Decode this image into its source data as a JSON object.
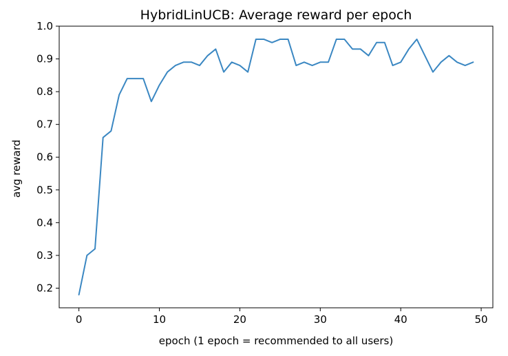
{
  "chart_data": {
    "type": "line",
    "title": "HybridLinUCB: Average reward per epoch",
    "xlabel": "epoch (1 epoch = recommended to all users)",
    "ylabel": "avg reward",
    "xlim": [
      -2.45,
      51.45
    ],
    "ylim": [
      0.14,
      1.0
    ],
    "xticks": [
      0,
      10,
      20,
      30,
      40,
      50
    ],
    "yticks": [
      0.2,
      0.3,
      0.4,
      0.5,
      0.6,
      0.7,
      0.8,
      0.9,
      1.0
    ],
    "xtick_labels": [
      "0",
      "10",
      "20",
      "30",
      "40",
      "50"
    ],
    "ytick_labels": [
      "0.2",
      "0.3",
      "0.4",
      "0.5",
      "0.6",
      "0.7",
      "0.8",
      "0.9",
      "1.0"
    ],
    "grid": false,
    "series": [
      {
        "color": "#3a87c2",
        "x": [
          0,
          1,
          2,
          3,
          4,
          5,
          6,
          7,
          8,
          9,
          10,
          11,
          12,
          13,
          14,
          15,
          16,
          17,
          18,
          19,
          20,
          21,
          22,
          23,
          24,
          25,
          26,
          27,
          28,
          29,
          30,
          31,
          32,
          33,
          34,
          35,
          36,
          37,
          38,
          39,
          40,
          41,
          42,
          43,
          44,
          45,
          46,
          47,
          48,
          49
        ],
        "values": [
          0.18,
          0.3,
          0.32,
          0.66,
          0.68,
          0.79,
          0.84,
          0.84,
          0.84,
          0.77,
          0.82,
          0.86,
          0.88,
          0.89,
          0.89,
          0.88,
          0.91,
          0.93,
          0.86,
          0.89,
          0.88,
          0.86,
          0.96,
          0.96,
          0.95,
          0.96,
          0.96,
          0.88,
          0.89,
          0.88,
          0.89,
          0.89,
          0.96,
          0.96,
          0.93,
          0.93,
          0.91,
          0.95,
          0.95,
          0.88,
          0.89,
          0.93,
          0.96,
          0.91,
          0.86,
          0.89,
          0.91,
          0.89,
          0.88,
          0.89
        ]
      }
    ]
  }
}
